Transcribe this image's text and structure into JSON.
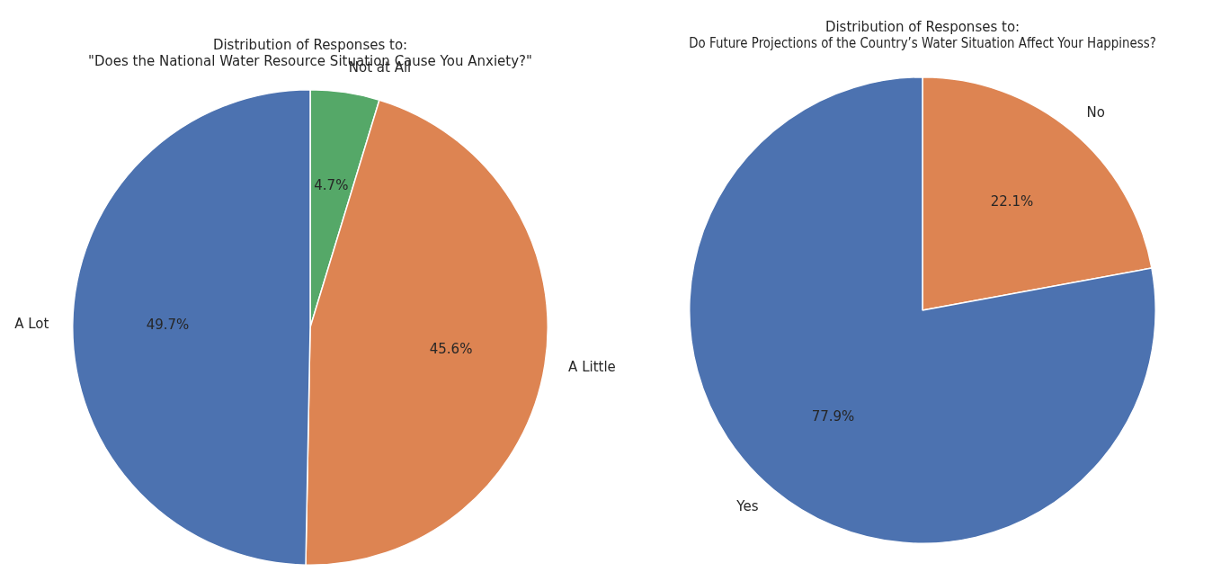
{
  "chart_data": [
    {
      "type": "pie",
      "title": "Distribution of Responses to:",
      "subtitle": "\"Does the National Water Resource Situation Cause You Anxiety?\"",
      "categories": [
        "Not at All",
        "A Little",
        "A Lot"
      ],
      "values": [
        4.7,
        45.6,
        49.7
      ],
      "value_labels": [
        "4.7%",
        "45.6%",
        "49.7%"
      ],
      "colors": [
        "#55a868",
        "#dd8452",
        "#4c72b0"
      ],
      "legend": false
    },
    {
      "type": "pie",
      "title": "Distribution of Responses to:",
      "subtitle": "Do Future Projections of the Country’s Water Situation Affect Your Happiness?",
      "categories": [
        "No",
        "Yes"
      ],
      "values": [
        22.1,
        77.9
      ],
      "value_labels": [
        "22.1%",
        "77.9%"
      ],
      "colors": [
        "#dd8452",
        "#4c72b0"
      ],
      "legend": false
    }
  ]
}
